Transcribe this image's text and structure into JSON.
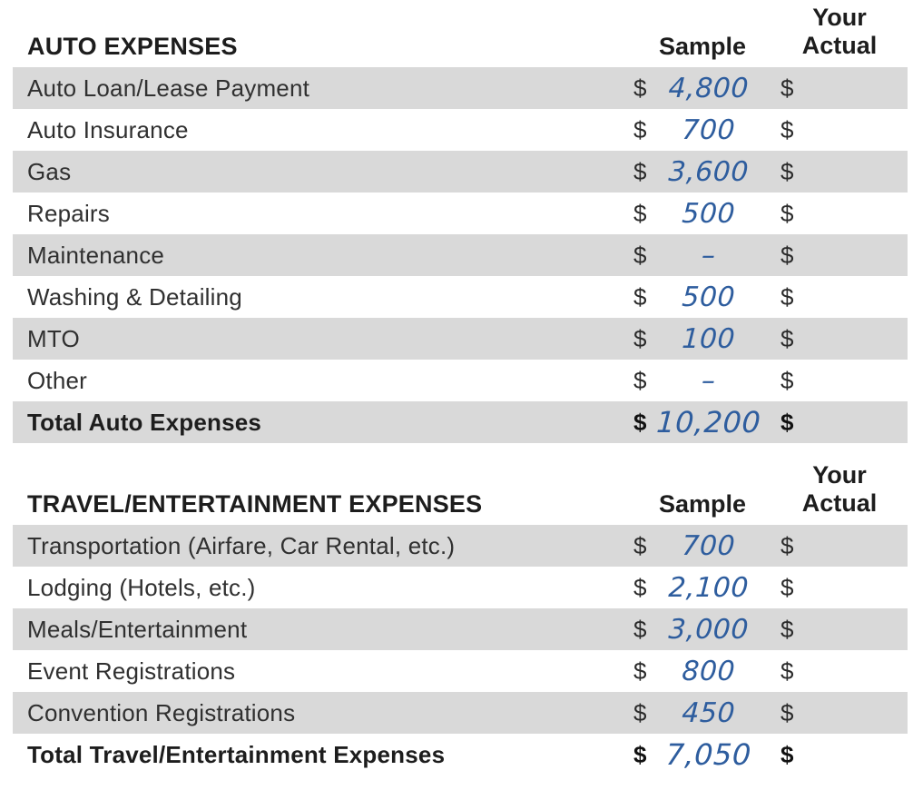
{
  "currency_symbol": "$",
  "colors": {
    "row_shade": "#d9d9d9",
    "handwriting_blue": "#2e5d9e",
    "heading_text": "#1d1d1d",
    "body_text": "#303030"
  },
  "columns": {
    "sample_label": "Sample",
    "actual_label_line1": "Your",
    "actual_label_line2": "Actual"
  },
  "sections": [
    {
      "title": "AUTO EXPENSES",
      "rows": [
        {
          "label": "Auto Loan/Lease Payment",
          "sample": "4,800"
        },
        {
          "label": "Auto Insurance",
          "sample": "700"
        },
        {
          "label": "Gas",
          "sample": "3,600"
        },
        {
          "label": "Repairs",
          "sample": "500"
        },
        {
          "label": "Maintenance",
          "sample": "–"
        },
        {
          "label": "Washing & Detailing",
          "sample": "500"
        },
        {
          "label": "MTO",
          "sample": "100"
        },
        {
          "label": "Other",
          "sample": "–"
        },
        {
          "label": "Total Auto Expenses",
          "sample": "10,200"
        }
      ]
    },
    {
      "title": "TRAVEL/ENTERTAINMENT EXPENSES",
      "rows": [
        {
          "label": "Transportation (Airfare, Car Rental, etc.)",
          "sample": "700"
        },
        {
          "label": "Lodging (Hotels, etc.)",
          "sample": "2,100"
        },
        {
          "label": "Meals/Entertainment",
          "sample": "3,000"
        },
        {
          "label": "Event Registrations",
          "sample": "800"
        },
        {
          "label": "Convention Registrations",
          "sample": "450"
        },
        {
          "label": "Total Travel/Entertainment Expenses",
          "sample": "7,050"
        }
      ]
    }
  ]
}
